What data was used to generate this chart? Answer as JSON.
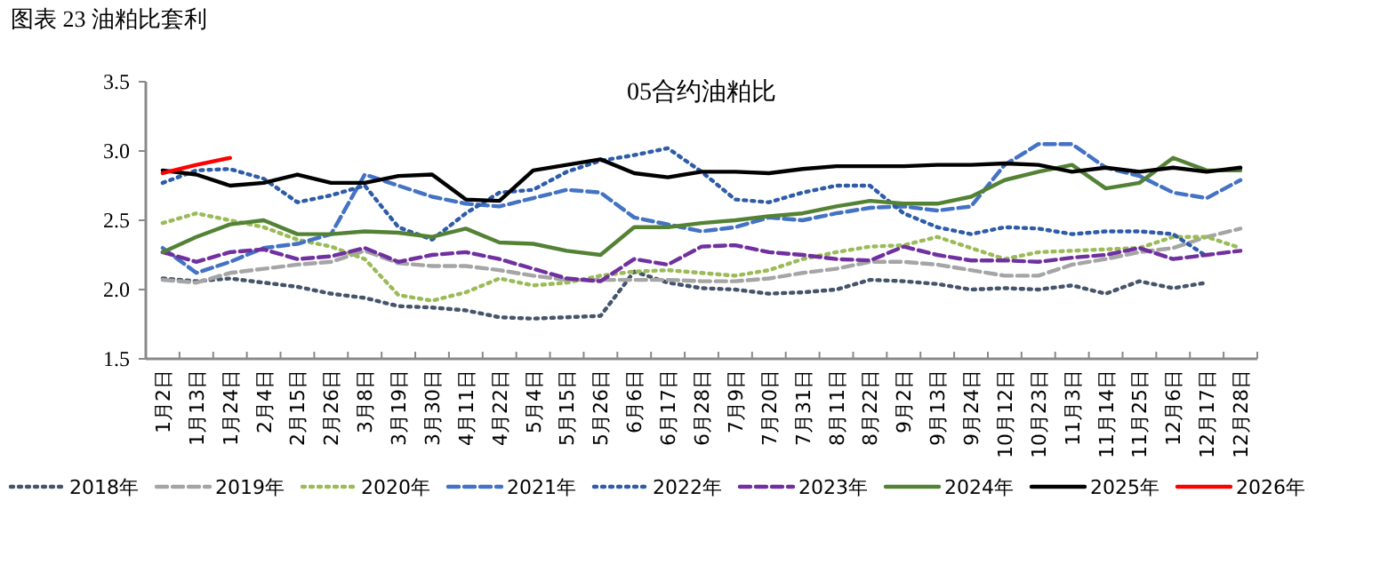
{
  "chart_data": {
    "type": "line",
    "title": "图表 23 油粕比套利",
    "subtitle": "05合约油粕比",
    "categories": [
      "1月2日",
      "1月13日",
      "1月24日",
      "2月4日",
      "2月15日",
      "2月26日",
      "3月8日",
      "3月19日",
      "3月30日",
      "4月11日",
      "4月22日",
      "5月4日",
      "5月15日",
      "5月26日",
      "6月6日",
      "6月17日",
      "6月28日",
      "7月9日",
      "7月20日",
      "7月31日",
      "8月11日",
      "8月22日",
      "9月2日",
      "9月13日",
      "9月24日",
      "10月12日",
      "10月23日",
      "11月3日",
      "11月14日",
      "11月25日",
      "12月6日",
      "12月17日",
      "12月28日"
    ],
    "series": [
      {
        "name": "2018年",
        "color": "#44546a",
        "line_style": "dotted",
        "values": [
          2.08,
          2.06,
          2.08,
          2.05,
          2.02,
          1.97,
          1.94,
          1.88,
          1.87,
          1.85,
          1.8,
          1.79,
          1.8,
          1.81,
          2.13,
          2.05,
          2.01,
          2.0,
          1.97,
          1.98,
          2.0,
          2.07,
          2.06,
          2.04,
          2.0,
          2.01,
          2.0,
          2.03,
          1.97,
          2.06,
          2.01,
          2.05,
          null
        ]
      },
      {
        "name": "2019年",
        "color": "#a5a5a5",
        "line_style": "dashed",
        "values": [
          2.07,
          2.05,
          2.12,
          2.15,
          2.18,
          2.2,
          2.28,
          2.19,
          2.17,
          2.17,
          2.14,
          2.1,
          2.07,
          2.07,
          2.07,
          2.07,
          2.06,
          2.06,
          2.08,
          2.12,
          2.15,
          2.2,
          2.2,
          2.18,
          2.14,
          2.1,
          2.1,
          2.18,
          2.22,
          2.27,
          2.3,
          2.38,
          2.44
        ]
      },
      {
        "name": "2020年",
        "color": "#9bbb59",
        "line_style": "dotted",
        "values": [
          2.48,
          2.55,
          2.5,
          2.45,
          2.36,
          2.31,
          2.22,
          1.96,
          1.92,
          1.98,
          2.08,
          2.03,
          2.05,
          2.1,
          2.13,
          2.14,
          2.12,
          2.1,
          2.14,
          2.22,
          2.27,
          2.31,
          2.32,
          2.38,
          2.3,
          2.22,
          2.27,
          2.28,
          2.29,
          2.3,
          2.38,
          2.38,
          2.3
        ]
      },
      {
        "name": "2021年",
        "color": "#4472c4",
        "line_style": "dashed",
        "values": [
          2.3,
          2.12,
          2.2,
          2.3,
          2.33,
          2.4,
          2.83,
          2.75,
          2.67,
          2.62,
          2.6,
          2.66,
          2.72,
          2.7,
          2.52,
          2.47,
          2.42,
          2.45,
          2.52,
          2.5,
          2.55,
          2.59,
          2.6,
          2.57,
          2.6,
          2.9,
          3.05,
          3.05,
          2.88,
          2.82,
          2.7,
          2.66,
          2.79
        ]
      },
      {
        "name": "2022年",
        "color": "#2e5ca8",
        "line_style": "dotted",
        "values": [
          2.77,
          2.86,
          2.87,
          2.8,
          2.63,
          2.68,
          2.75,
          2.45,
          2.36,
          2.55,
          2.7,
          2.72,
          2.85,
          2.93,
          2.97,
          3.02,
          2.85,
          2.65,
          2.63,
          2.7,
          2.75,
          2.75,
          2.55,
          2.45,
          2.4,
          2.45,
          2.44,
          2.4,
          2.42,
          2.42,
          2.4,
          2.24,
          null
        ]
      },
      {
        "name": "2023年",
        "color": "#7030a0",
        "line_style": "dashed",
        "values": [
          2.27,
          2.2,
          2.27,
          2.29,
          2.22,
          2.24,
          2.3,
          2.2,
          2.25,
          2.27,
          2.22,
          2.15,
          2.08,
          2.06,
          2.22,
          2.18,
          2.31,
          2.32,
          2.27,
          2.25,
          2.22,
          2.21,
          2.31,
          2.25,
          2.21,
          2.21,
          2.2,
          2.23,
          2.25,
          2.3,
          2.22,
          2.25,
          2.28
        ]
      },
      {
        "name": "2024年",
        "color": "#548235",
        "line_style": "solid",
        "values": [
          2.27,
          2.38,
          2.47,
          2.5,
          2.4,
          2.4,
          2.42,
          2.41,
          2.38,
          2.44,
          2.34,
          2.33,
          2.28,
          2.25,
          2.45,
          2.45,
          2.48,
          2.5,
          2.53,
          2.55,
          2.6,
          2.64,
          2.62,
          2.62,
          2.67,
          2.79,
          2.85,
          2.9,
          2.73,
          2.77,
          2.95,
          2.86,
          2.86
        ]
      },
      {
        "name": "2025年",
        "color": "#000000",
        "line_style": "solid",
        "values": [
          2.86,
          2.83,
          2.75,
          2.77,
          2.83,
          2.77,
          2.77,
          2.82,
          2.83,
          2.65,
          2.64,
          2.86,
          2.9,
          2.94,
          2.84,
          2.81,
          2.85,
          2.85,
          2.84,
          2.87,
          2.89,
          2.89,
          2.89,
          2.9,
          2.9,
          2.91,
          2.9,
          2.85,
          2.88,
          2.85,
          2.88,
          2.85,
          2.88
        ]
      },
      {
        "name": "2026年",
        "color": "#ff0000",
        "line_style": "solid",
        "values": [
          2.84,
          2.9,
          2.95,
          null,
          null,
          null,
          null,
          null,
          null,
          null,
          null,
          null,
          null,
          null,
          null,
          null,
          null,
          null,
          null,
          null,
          null,
          null,
          null,
          null,
          null,
          null,
          null,
          null,
          null,
          null,
          null,
          null,
          null
        ]
      }
    ],
    "ylim": [
      1.5,
      3.5
    ],
    "yticks": [
      {
        "value": 1.5,
        "label": "1.5"
      },
      {
        "value": 2,
        "label": "2.0"
      },
      {
        "value": 2.5,
        "label": "2.5"
      },
      {
        "value": 3,
        "label": "3.0"
      },
      {
        "value": 3.5,
        "label": "3.5"
      }
    ],
    "legend": "bottom"
  }
}
